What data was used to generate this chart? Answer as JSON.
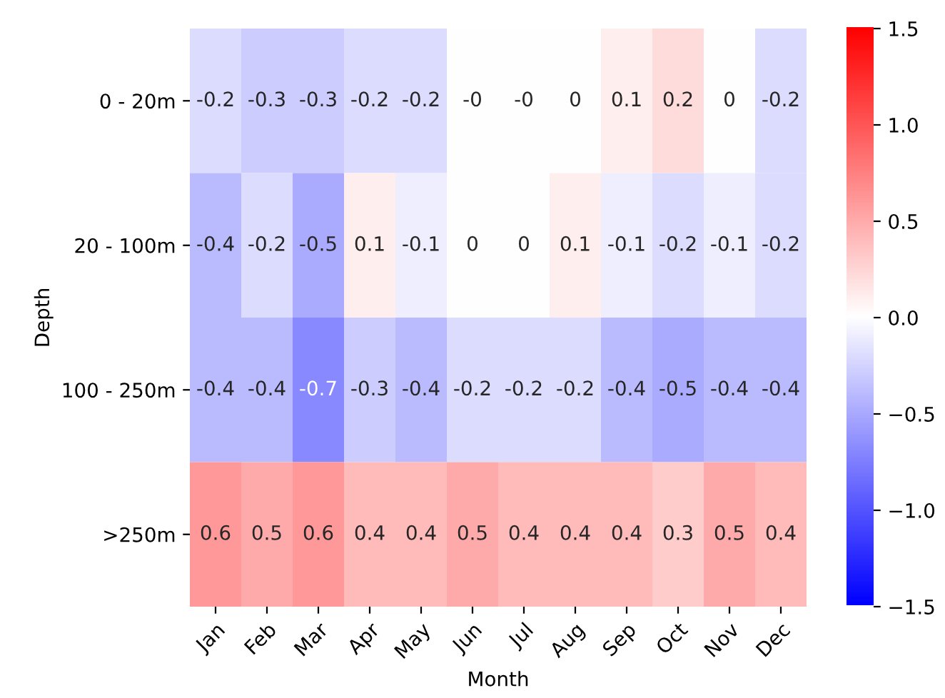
{
  "chart_data": {
    "type": "heatmap",
    "xlabel": "Month",
    "ylabel": "Depth",
    "categories": [
      "Jan",
      "Feb",
      "Mar",
      "Apr",
      "May",
      "Jun",
      "Jul",
      "Aug",
      "Sep",
      "Oct",
      "Nov",
      "Dec"
    ],
    "y_categories": [
      "0 - 20m",
      "20 - 100m",
      "100 - 250m",
      ">250m"
    ],
    "cells": [
      [
        -0.2,
        -0.3,
        -0.3,
        -0.2,
        -0.2,
        0,
        0,
        0,
        0.1,
        0.2,
        0,
        -0.2
      ],
      [
        -0.4,
        -0.2,
        -0.5,
        0.1,
        -0.1,
        0,
        0,
        0.1,
        -0.1,
        -0.2,
        -0.1,
        -0.2
      ],
      [
        -0.4,
        -0.4,
        -0.7,
        -0.3,
        -0.4,
        -0.2,
        -0.2,
        -0.2,
        -0.4,
        -0.5,
        -0.4,
        -0.4
      ],
      [
        0.6,
        0.5,
        0.6,
        0.4,
        0.4,
        0.5,
        0.4,
        0.4,
        0.4,
        0.3,
        0.5,
        0.4
      ]
    ],
    "cell_labels": [
      [
        "-0.2",
        "-0.3",
        "-0.3",
        "-0.2",
        "-0.2",
        "-0",
        "-0",
        "0",
        "0.1",
        "0.2",
        "0",
        "-0.2"
      ],
      [
        "-0.4",
        "-0.2",
        "-0.5",
        "0.1",
        "-0.1",
        "0",
        "0",
        "0.1",
        "-0.1",
        "-0.2",
        "-0.1",
        "-0.2"
      ],
      [
        "-0.4",
        "-0.4",
        "-0.7",
        "-0.3",
        "-0.4",
        "-0.2",
        "-0.2",
        "-0.2",
        "-0.4",
        "-0.5",
        "-0.4",
        "-0.4"
      ],
      [
        "0.6",
        "0.5",
        "0.6",
        "0.4",
        "0.4",
        "0.5",
        "0.4",
        "0.4",
        "0.4",
        "0.3",
        "0.5",
        "0.4"
      ]
    ],
    "clim": [
      -1.5,
      1.5
    ],
    "cticks": [
      {
        "value": -1.5,
        "label": "−1.5"
      },
      {
        "value": -1.0,
        "label": "−1.0"
      },
      {
        "value": -0.5,
        "label": "−0.5"
      },
      {
        "value": 0,
        "label": "0.0"
      },
      {
        "value": 0.5,
        "label": "0.5"
      },
      {
        "value": 1.0,
        "label": "1.0"
      },
      {
        "value": 1.5,
        "label": "1.5"
      }
    ]
  }
}
